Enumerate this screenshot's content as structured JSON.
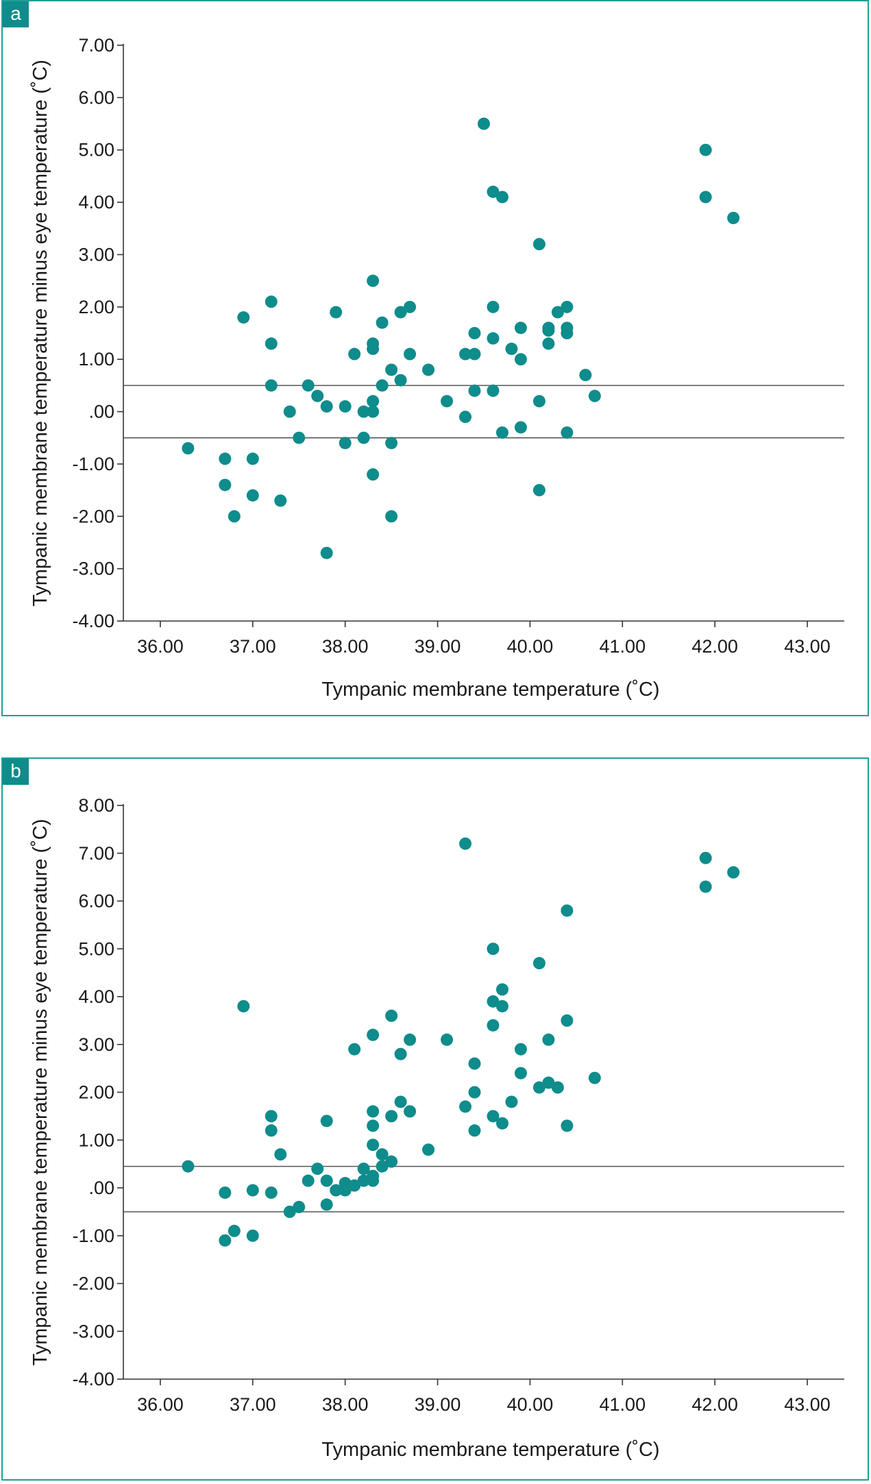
{
  "colors": {
    "accent": "#0f8c8c",
    "border": "#1e9e98",
    "point": "#0f8c8c",
    "line": "#555555"
  },
  "chart_data": [
    {
      "panel_label": "a",
      "type": "scatter",
      "xlabel": "Tympanic membrane temperature (˚C)",
      "ylabel": "Tympanic membrane temperature minus eye temperature (˚C)",
      "xlim": [
        35.6,
        43.4
      ],
      "ylim": [
        -4.0,
        7.0
      ],
      "xticks": [
        "36.00",
        "37.00",
        "38.00",
        "39.00",
        "40.00",
        "41.00",
        "42.00",
        "43.00"
      ],
      "xtick_values": [
        36,
        37,
        38,
        39,
        40,
        41,
        42,
        43
      ],
      "yticks": [
        "7.00",
        "6.00",
        "5.00",
        "4.00",
        "3.00",
        "2.00",
        "1.00",
        ".00",
        "-1.00",
        "-2.00",
        "-3.00",
        "-4.00"
      ],
      "ytick_values": [
        7,
        6,
        5,
        4,
        3,
        2,
        1,
        0,
        -1,
        -2,
        -3,
        -4
      ],
      "reference_lines": [
        0.5,
        -0.5
      ],
      "points": [
        {
          "x": 36.3,
          "y": -0.7
        },
        {
          "x": 36.7,
          "y": -0.9
        },
        {
          "x": 36.7,
          "y": -1.4
        },
        {
          "x": 36.8,
          "y": -2.0
        },
        {
          "x": 36.9,
          "y": 1.8
        },
        {
          "x": 37.0,
          "y": -0.9
        },
        {
          "x": 37.0,
          "y": -1.6
        },
        {
          "x": 37.2,
          "y": 2.1
        },
        {
          "x": 37.2,
          "y": 1.3
        },
        {
          "x": 37.2,
          "y": 0.5
        },
        {
          "x": 37.3,
          "y": -1.7
        },
        {
          "x": 37.4,
          "y": 0.0
        },
        {
          "x": 37.5,
          "y": -0.5
        },
        {
          "x": 37.6,
          "y": 0.5
        },
        {
          "x": 37.7,
          "y": 0.3
        },
        {
          "x": 37.8,
          "y": 0.1
        },
        {
          "x": 37.8,
          "y": -2.7
        },
        {
          "x": 37.9,
          "y": 1.9
        },
        {
          "x": 38.0,
          "y": 0.1
        },
        {
          "x": 38.0,
          "y": -0.6
        },
        {
          "x": 38.1,
          "y": 1.1
        },
        {
          "x": 38.2,
          "y": 0.0
        },
        {
          "x": 38.2,
          "y": -0.5
        },
        {
          "x": 38.3,
          "y": 2.5
        },
        {
          "x": 38.3,
          "y": 1.3
        },
        {
          "x": 38.3,
          "y": 1.2
        },
        {
          "x": 38.3,
          "y": 0.2
        },
        {
          "x": 38.3,
          "y": 0.0
        },
        {
          "x": 38.3,
          "y": -1.2
        },
        {
          "x": 38.4,
          "y": 1.7
        },
        {
          "x": 38.4,
          "y": 0.5
        },
        {
          "x": 38.5,
          "y": 0.8
        },
        {
          "x": 38.5,
          "y": -0.6
        },
        {
          "x": 38.5,
          "y": -2.0
        },
        {
          "x": 38.6,
          "y": 1.9
        },
        {
          "x": 38.6,
          "y": 0.6
        },
        {
          "x": 38.7,
          "y": 2.0
        },
        {
          "x": 38.7,
          "y": 1.1
        },
        {
          "x": 38.9,
          "y": 0.8
        },
        {
          "x": 39.1,
          "y": 0.2
        },
        {
          "x": 39.3,
          "y": 1.1
        },
        {
          "x": 39.3,
          "y": -0.1
        },
        {
          "x": 39.4,
          "y": 1.5
        },
        {
          "x": 39.4,
          "y": 0.4
        },
        {
          "x": 39.4,
          "y": 1.1
        },
        {
          "x": 39.5,
          "y": 5.5
        },
        {
          "x": 39.6,
          "y": 4.2
        },
        {
          "x": 39.6,
          "y": 2.0
        },
        {
          "x": 39.6,
          "y": 1.4
        },
        {
          "x": 39.6,
          "y": 0.4
        },
        {
          "x": 39.7,
          "y": 4.1
        },
        {
          "x": 39.7,
          "y": -0.4
        },
        {
          "x": 39.8,
          "y": 1.2
        },
        {
          "x": 39.9,
          "y": 1.6
        },
        {
          "x": 39.9,
          "y": 1.0
        },
        {
          "x": 39.9,
          "y": -0.3
        },
        {
          "x": 40.1,
          "y": 3.2
        },
        {
          "x": 40.1,
          "y": 0.2
        },
        {
          "x": 40.1,
          "y": -1.5
        },
        {
          "x": 40.2,
          "y": 1.6
        },
        {
          "x": 40.2,
          "y": 1.55
        },
        {
          "x": 40.2,
          "y": 1.3
        },
        {
          "x": 40.3,
          "y": 1.9
        },
        {
          "x": 40.4,
          "y": 2.0
        },
        {
          "x": 40.4,
          "y": 1.6
        },
        {
          "x": 40.4,
          "y": 1.5
        },
        {
          "x": 40.4,
          "y": -0.4
        },
        {
          "x": 40.6,
          "y": 0.7
        },
        {
          "x": 40.7,
          "y": 0.3
        },
        {
          "x": 41.9,
          "y": 5.0
        },
        {
          "x": 41.9,
          "y": 4.1
        },
        {
          "x": 42.2,
          "y": 3.7
        }
      ]
    },
    {
      "panel_label": "b",
      "type": "scatter",
      "xlabel": "Tympanic membrane temperature (˚C)",
      "ylabel": "Tympanic membrane temperature minus eye temperature (˚C)",
      "xlim": [
        35.6,
        43.4
      ],
      "ylim": [
        -4.0,
        8.0
      ],
      "xticks": [
        "36.00",
        "37.00",
        "38.00",
        "39.00",
        "40.00",
        "41.00",
        "42.00",
        "43.00"
      ],
      "xtick_values": [
        36,
        37,
        38,
        39,
        40,
        41,
        42,
        43
      ],
      "yticks": [
        "8.00",
        "7.00",
        "6.00",
        "5.00",
        "4.00",
        "3.00",
        "2.00",
        "1.00",
        ".00",
        "-1.00",
        "-2.00",
        "-3.00",
        "-4.00"
      ],
      "ytick_values": [
        8,
        7,
        6,
        5,
        4,
        3,
        2,
        1,
        0,
        -1,
        -2,
        -3,
        -4
      ],
      "reference_lines": [
        0.45,
        -0.5
      ],
      "points": [
        {
          "x": 36.3,
          "y": 0.45
        },
        {
          "x": 36.7,
          "y": -0.1
        },
        {
          "x": 36.7,
          "y": -1.1
        },
        {
          "x": 36.8,
          "y": -0.9
        },
        {
          "x": 36.9,
          "y": 3.8
        },
        {
          "x": 37.0,
          "y": -0.05
        },
        {
          "x": 37.0,
          "y": -1.0
        },
        {
          "x": 37.2,
          "y": 1.5
        },
        {
          "x": 37.2,
          "y": 1.2
        },
        {
          "x": 37.2,
          "y": -0.1
        },
        {
          "x": 37.3,
          "y": 0.7
        },
        {
          "x": 37.4,
          "y": -0.5
        },
        {
          "x": 37.5,
          "y": -0.4
        },
        {
          "x": 37.6,
          "y": 0.15
        },
        {
          "x": 37.7,
          "y": 0.4
        },
        {
          "x": 37.8,
          "y": 1.4
        },
        {
          "x": 37.8,
          "y": 0.15
        },
        {
          "x": 37.8,
          "y": -0.35
        },
        {
          "x": 37.9,
          "y": -0.05
        },
        {
          "x": 38.0,
          "y": 0.1
        },
        {
          "x": 38.0,
          "y": -0.05
        },
        {
          "x": 38.1,
          "y": 2.9
        },
        {
          "x": 38.1,
          "y": 0.05
        },
        {
          "x": 38.2,
          "y": 0.4
        },
        {
          "x": 38.2,
          "y": 0.15
        },
        {
          "x": 38.3,
          "y": 3.2
        },
        {
          "x": 38.3,
          "y": 1.6
        },
        {
          "x": 38.3,
          "y": 1.3
        },
        {
          "x": 38.3,
          "y": 0.9
        },
        {
          "x": 38.3,
          "y": 0.25
        },
        {
          "x": 38.3,
          "y": 0.15
        },
        {
          "x": 38.4,
          "y": 0.7
        },
        {
          "x": 38.4,
          "y": 0.45
        },
        {
          "x": 38.5,
          "y": 3.6
        },
        {
          "x": 38.5,
          "y": 1.5
        },
        {
          "x": 38.5,
          "y": 0.55
        },
        {
          "x": 38.6,
          "y": 2.8
        },
        {
          "x": 38.6,
          "y": 1.8
        },
        {
          "x": 38.7,
          "y": 3.1
        },
        {
          "x": 38.7,
          "y": 1.6
        },
        {
          "x": 38.9,
          "y": 0.8
        },
        {
          "x": 39.1,
          "y": 3.1
        },
        {
          "x": 39.3,
          "y": 7.2
        },
        {
          "x": 39.3,
          "y": 1.7
        },
        {
          "x": 39.4,
          "y": 2.6
        },
        {
          "x": 39.4,
          "y": 2.0
        },
        {
          "x": 39.4,
          "y": 1.2
        },
        {
          "x": 39.6,
          "y": 5.0
        },
        {
          "x": 39.6,
          "y": 3.9
        },
        {
          "x": 39.6,
          "y": 3.4
        },
        {
          "x": 39.6,
          "y": 1.5
        },
        {
          "x": 39.7,
          "y": 4.15
        },
        {
          "x": 39.7,
          "y": 3.8
        },
        {
          "x": 39.7,
          "y": 1.35
        },
        {
          "x": 39.8,
          "y": 1.8
        },
        {
          "x": 39.9,
          "y": 2.9
        },
        {
          "x": 39.9,
          "y": 2.4
        },
        {
          "x": 40.1,
          "y": 4.7
        },
        {
          "x": 40.1,
          "y": 2.1
        },
        {
          "x": 40.2,
          "y": 3.1
        },
        {
          "x": 40.2,
          "y": 2.2
        },
        {
          "x": 40.3,
          "y": 2.1
        },
        {
          "x": 40.4,
          "y": 5.8
        },
        {
          "x": 40.4,
          "y": 3.5
        },
        {
          "x": 40.4,
          "y": 1.3
        },
        {
          "x": 40.7,
          "y": 2.3
        },
        {
          "x": 41.9,
          "y": 6.9
        },
        {
          "x": 41.9,
          "y": 6.3
        },
        {
          "x": 42.2,
          "y": 6.6
        }
      ]
    }
  ]
}
